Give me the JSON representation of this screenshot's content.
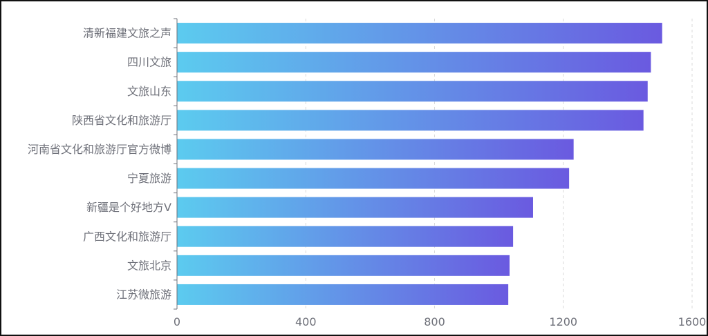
{
  "chart_data": {
    "type": "bar",
    "orientation": "horizontal",
    "categories": [
      "清新福建文旅之声",
      "四川文旅",
      "文旅山东",
      "陕西省文化和旅游厅",
      "河南省文化和旅游厅官方微博",
      "宁夏旅游",
      "新疆是个好地方V",
      "广西文化和旅游厅",
      "文旅北京",
      "江苏微旅游"
    ],
    "values": [
      1507,
      1472,
      1462,
      1449,
      1232,
      1218,
      1106,
      1044,
      1033,
      1029
    ],
    "xlim": [
      0,
      1600
    ],
    "xticks": [
      0,
      400,
      800,
      1200,
      1600
    ],
    "grid": true,
    "title": "",
    "xlabel": "",
    "ylabel": "",
    "colors": {
      "gradient_start": "#5ccbef",
      "gradient_end": "#6a5ae0",
      "axis": "#6e7079",
      "grid": "#d9d9d9",
      "label": "#6e7079"
    }
  }
}
